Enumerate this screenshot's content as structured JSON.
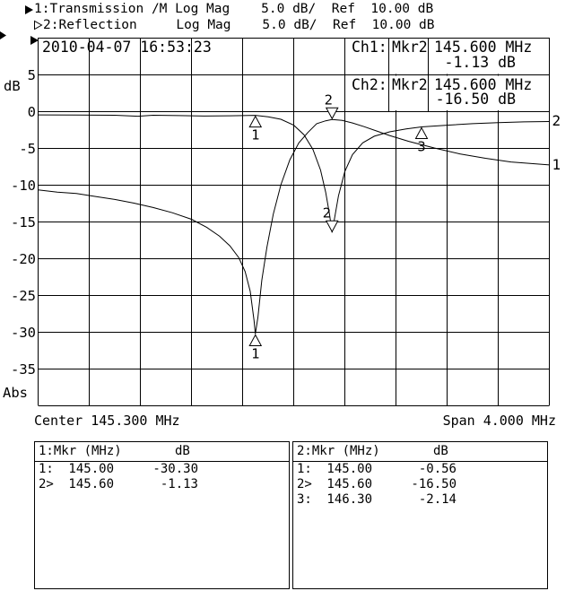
{
  "colors": {
    "foreground": "#000000",
    "background": "#ffffff"
  },
  "header": {
    "line1": {
      "indicator": "filled-right-triangle",
      "text": "1:Transmission /M Log Mag    5.0 dB/  Ref  10.00 dB"
    },
    "line2": {
      "indicator": "open-right-triangle",
      "text": "2:Reflection     Log Mag    5.0 dB/  Ref  10.00 dB"
    }
  },
  "timestamp": {
    "date": "2010-04-07",
    "time": "16:53:23"
  },
  "readouts": [
    {
      "channel": "Ch1:",
      "marker": "Mkr2",
      "freq": "145.600 MHz",
      "value": "-1.13 dB"
    },
    {
      "channel": "Ch2:",
      "marker": "Mkr2",
      "freq": "145.600 MHz",
      "value": "-16.50 dB"
    }
  ],
  "marker_tables": [
    {
      "header_label": "1:Mkr (MHz)",
      "header_unit": "dB",
      "rows": [
        {
          "m": "1:",
          "f": "145.00",
          "v": "-30.30"
        },
        {
          "m": "2>",
          "f": "145.60",
          "v": "-1.13"
        }
      ]
    },
    {
      "header_label": "2:Mkr (MHz)",
      "header_unit": "dB",
      "rows": [
        {
          "m": "1:",
          "f": "145.00",
          "v": "-0.56"
        },
        {
          "m": "2>",
          "f": "145.60",
          "v": "-16.50"
        },
        {
          "m": "3:",
          "f": "146.30",
          "v": "-2.14"
        }
      ]
    }
  ],
  "chart_data": {
    "type": "line",
    "x_axis": {
      "label_left": "Center 145.300 MHz",
      "label_right": "Span 4.000 MHz",
      "center_mhz": 145.3,
      "span_mhz": 4.0,
      "xlim": [
        143.3,
        147.3
      ],
      "divisions": 10
    },
    "y_axis": {
      "unit": "dB",
      "scale_db_per_div": 5.0,
      "ref_db": 10.0,
      "ylim": [
        10,
        -40
      ],
      "ticks": [
        5,
        0,
        -5,
        -10,
        -15,
        -20,
        -25,
        -30,
        -35
      ],
      "bottom_label": "Abs",
      "divisions": 10
    },
    "grid": true,
    "series": [
      {
        "name": "Transmission",
        "channel": 1,
        "end_label": "1",
        "points": [
          [
            143.3,
            -10.7
          ],
          [
            143.45,
            -11.0
          ],
          [
            143.6,
            -11.2
          ],
          [
            143.75,
            -11.6
          ],
          [
            143.9,
            -12.0
          ],
          [
            144.05,
            -12.5
          ],
          [
            144.2,
            -13.1
          ],
          [
            144.35,
            -13.8
          ],
          [
            144.5,
            -14.7
          ],
          [
            144.62,
            -15.8
          ],
          [
            144.72,
            -17.0
          ],
          [
            144.8,
            -18.3
          ],
          [
            144.87,
            -19.9
          ],
          [
            144.92,
            -21.8
          ],
          [
            144.96,
            -24.5
          ],
          [
            144.99,
            -28.5
          ],
          [
            145.0,
            -30.3
          ],
          [
            145.02,
            -28.0
          ],
          [
            145.05,
            -23.0
          ],
          [
            145.09,
            -18.5
          ],
          [
            145.14,
            -14.0
          ],
          [
            145.2,
            -10.0
          ],
          [
            145.27,
            -6.6
          ],
          [
            145.34,
            -4.3
          ],
          [
            145.41,
            -2.9
          ],
          [
            145.48,
            -1.7
          ],
          [
            145.55,
            -1.3
          ],
          [
            145.6,
            -1.13
          ],
          [
            145.68,
            -1.25
          ],
          [
            145.76,
            -1.6
          ],
          [
            145.85,
            -2.1
          ],
          [
            145.95,
            -2.7
          ],
          [
            146.05,
            -3.3
          ],
          [
            146.2,
            -4.1
          ],
          [
            146.4,
            -5.0
          ],
          [
            146.6,
            -5.8
          ],
          [
            146.8,
            -6.4
          ],
          [
            147.0,
            -6.9
          ],
          [
            147.15,
            -7.1
          ],
          [
            147.3,
            -7.3
          ]
        ],
        "markers": [
          {
            "label": "1",
            "mhz": 145.0,
            "db": -30.3,
            "dir": "up",
            "active": false,
            "label_dx": 0
          },
          {
            "label": "2",
            "mhz": 145.6,
            "db": -1.13,
            "dir": "down",
            "active": true,
            "label_dx": -4
          }
        ]
      },
      {
        "name": "Reflection",
        "channel": 2,
        "end_label": "2",
        "points": [
          [
            143.3,
            -0.5
          ],
          [
            143.6,
            -0.52
          ],
          [
            143.9,
            -0.55
          ],
          [
            144.08,
            -0.68
          ],
          [
            144.2,
            -0.55
          ],
          [
            144.4,
            -0.6
          ],
          [
            144.6,
            -0.66
          ],
          [
            144.8,
            -0.62
          ],
          [
            145.0,
            -0.56
          ],
          [
            145.1,
            -0.75
          ],
          [
            145.2,
            -1.1
          ],
          [
            145.3,
            -1.9
          ],
          [
            145.38,
            -3.2
          ],
          [
            145.45,
            -5.2
          ],
          [
            145.51,
            -8.0
          ],
          [
            145.55,
            -11.0
          ],
          [
            145.58,
            -14.0
          ],
          [
            145.6,
            -16.5
          ],
          [
            145.62,
            -14.5
          ],
          [
            145.65,
            -11.5
          ],
          [
            145.7,
            -8.2
          ],
          [
            145.76,
            -5.9
          ],
          [
            145.84,
            -4.3
          ],
          [
            145.93,
            -3.4
          ],
          [
            146.05,
            -2.8
          ],
          [
            146.18,
            -2.4
          ],
          [
            146.3,
            -2.14
          ],
          [
            146.5,
            -1.9
          ],
          [
            146.7,
            -1.7
          ],
          [
            146.9,
            -1.55
          ],
          [
            147.1,
            -1.45
          ],
          [
            147.3,
            -1.4
          ]
        ],
        "markers": [
          {
            "label": "1",
            "mhz": 145.0,
            "db": -0.56,
            "dir": "up",
            "active": false,
            "label_dx": 0
          },
          {
            "label": "2",
            "mhz": 145.6,
            "db": -16.5,
            "dir": "down",
            "active": true,
            "label_dx": -6
          },
          {
            "label": "3",
            "mhz": 146.3,
            "db": -2.14,
            "dir": "up",
            "active": false,
            "label_dx": 0
          }
        ]
      }
    ]
  }
}
